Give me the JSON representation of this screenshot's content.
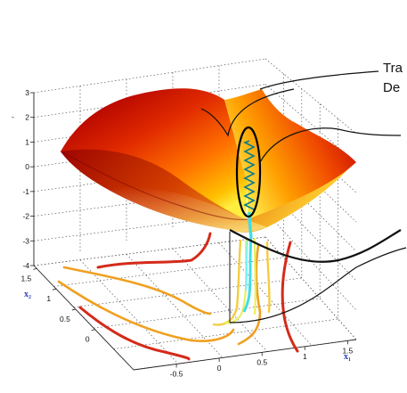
{
  "chart_data": {
    "type": "surface",
    "title": "",
    "z_axis": {
      "ticks": [
        "3",
        "2",
        "1",
        "0",
        "-1",
        "-2",
        "-3",
        "-4"
      ],
      "ylim": [
        -4,
        3
      ]
    },
    "x1_axis": {
      "label": "x₁",
      "ticks": [
        "-0.5",
        "0",
        "0.5",
        "1",
        "1.5"
      ],
      "xlim": [
        -0.75,
        1.5
      ]
    },
    "x2_axis": {
      "label": "x₂",
      "ticks": [
        "1.5",
        "1",
        "0.5",
        "0"
      ],
      "xlim": [
        -0.25,
        1.5
      ]
    },
    "z_dash_label": "-",
    "callouts": [
      "Tra",
      "De"
    ],
    "contour_levels": [
      {
        "color": "#d42a1a",
        "count": 3
      },
      {
        "color": "#f0a020",
        "count": 3
      },
      {
        "color": "#f5cc40",
        "count": 2
      },
      {
        "color": "#e8f060",
        "count": 2
      }
    ],
    "trajectory_color": "#40dde8",
    "colormap": [
      "#b80000",
      "#e03000",
      "#ff6a00",
      "#ffb000",
      "#ffff66"
    ],
    "grid": true
  }
}
